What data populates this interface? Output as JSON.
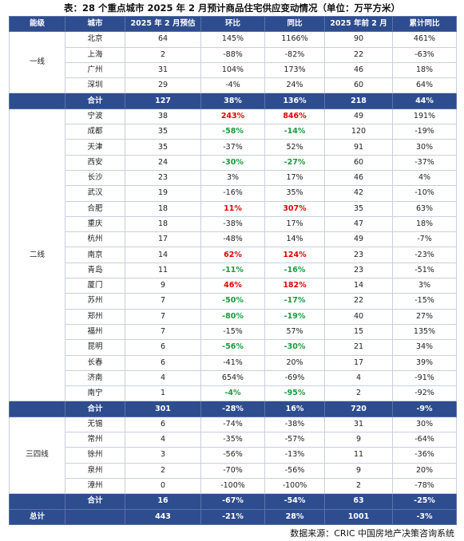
{
  "title": "表：28 个重点城市 2025 年 2 月预计商品住宅供应变动情况（单位：万平方米）",
  "header": [
    "能级",
    "城市",
    "2025 年 2 月预估",
    "环比",
    "同比",
    "2025 年前 2 月",
    "累计同比"
  ],
  "tiers": [
    {
      "name": "一线",
      "rows": [
        {
          "cells": [
            "北京",
            "64",
            "145%",
            "1166%",
            "90",
            "461%"
          ]
        },
        {
          "cells": [
            "上海",
            "2",
            "-88%",
            "-82%",
            "22",
            "-63%"
          ]
        },
        {
          "cells": [
            "广州",
            "31",
            "104%",
            "173%",
            "46",
            "18%"
          ]
        },
        {
          "cells": [
            "深圳",
            "29",
            "-4%",
            "24%",
            "60",
            "64%"
          ]
        }
      ],
      "total": [
        "合计",
        "127",
        "38%",
        "136%",
        "218",
        "44%"
      ]
    },
    {
      "name": "二线",
      "rows": [
        {
          "cells": [
            "宁波",
            "38",
            "243%",
            "846%",
            "49",
            "191%"
          ],
          "color": "#e60000"
        },
        {
          "cells": [
            "成都",
            "35",
            "-58%",
            "-14%",
            "120",
            "-19%"
          ],
          "color": "#1a9a3a"
        },
        {
          "cells": [
            "天津",
            "35",
            "-37%",
            "52%",
            "91",
            "30%"
          ]
        },
        {
          "cells": [
            "西安",
            "24",
            "-30%",
            "-27%",
            "60",
            "-37%"
          ],
          "color": "#1a9a3a"
        },
        {
          "cells": [
            "长沙",
            "23",
            "3%",
            "17%",
            "46",
            "4%"
          ]
        },
        {
          "cells": [
            "武汉",
            "19",
            "-16%",
            "35%",
            "42",
            "-10%"
          ]
        },
        {
          "cells": [
            "合肥",
            "18",
            "11%",
            "307%",
            "35",
            "63%"
          ],
          "color": "#e60000"
        },
        {
          "cells": [
            "重庆",
            "18",
            "-38%",
            "17%",
            "47",
            "18%"
          ]
        },
        {
          "cells": [
            "杭州",
            "17",
            "-48%",
            "14%",
            "49",
            "-7%"
          ]
        },
        {
          "cells": [
            "南京",
            "14",
            "62%",
            "124%",
            "23",
            "-23%"
          ],
          "color": "#e60000"
        },
        {
          "cells": [
            "青岛",
            "11",
            "-11%",
            "-16%",
            "23",
            "-51%"
          ],
          "color": "#1a9a3a"
        },
        {
          "cells": [
            "厦门",
            "9",
            "46%",
            "182%",
            "14",
            "3%"
          ],
          "color": "#e60000"
        },
        {
          "cells": [
            "苏州",
            "7",
            "-50%",
            "-17%",
            "22",
            "-15%"
          ],
          "color": "#1a9a3a"
        },
        {
          "cells": [
            "郑州",
            "7",
            "-80%",
            "-19%",
            "40",
            "27%"
          ],
          "color": "#1a9a3a"
        },
        {
          "cells": [
            "福州",
            "7",
            "-15%",
            "57%",
            "15",
            "135%"
          ]
        },
        {
          "cells": [
            "昆明",
            "6",
            "-56%",
            "-30%",
            "21",
            "34%"
          ],
          "color": "#1a9a3a"
        },
        {
          "cells": [
            "长春",
            "6",
            "-41%",
            "20%",
            "17",
            "39%"
          ]
        },
        {
          "cells": [
            "济南",
            "4",
            "654%",
            "-69%",
            "4",
            "-91%"
          ]
        },
        {
          "cells": [
            "南宁",
            "1",
            "-4%",
            "-95%",
            "2",
            "-92%"
          ],
          "color": "#1a9a3a"
        }
      ],
      "total": [
        "合计",
        "301",
        "-28%",
        "16%",
        "720",
        "-9%"
      ]
    },
    {
      "name": "三四线",
      "rows": [
        {
          "cells": [
            "无锡",
            "6",
            "-74%",
            "-38%",
            "31",
            "30%"
          ]
        },
        {
          "cells": [
            "常州",
            "4",
            "-35%",
            "-57%",
            "9",
            "-64%"
          ]
        },
        {
          "cells": [
            "徐州",
            "3",
            "-56%",
            "-13%",
            "11",
            "-36%"
          ]
        },
        {
          "cells": [
            "泉州",
            "2",
            "-70%",
            "-56%",
            "9",
            "20%"
          ]
        },
        {
          "cells": [
            "漳州",
            "0",
            "-100%",
            "-100%",
            "2",
            "-78%"
          ]
        }
      ],
      "total": [
        "合计",
        "16",
        "-67%",
        "-54%",
        "63",
        "-25%"
      ]
    }
  ],
  "grand_total": [
    "总计",
    "443",
    "-21%",
    "28%",
    "1001",
    "-3%"
  ],
  "source": "数据来源：CRIC 中国房地产决策咨询系统"
}
